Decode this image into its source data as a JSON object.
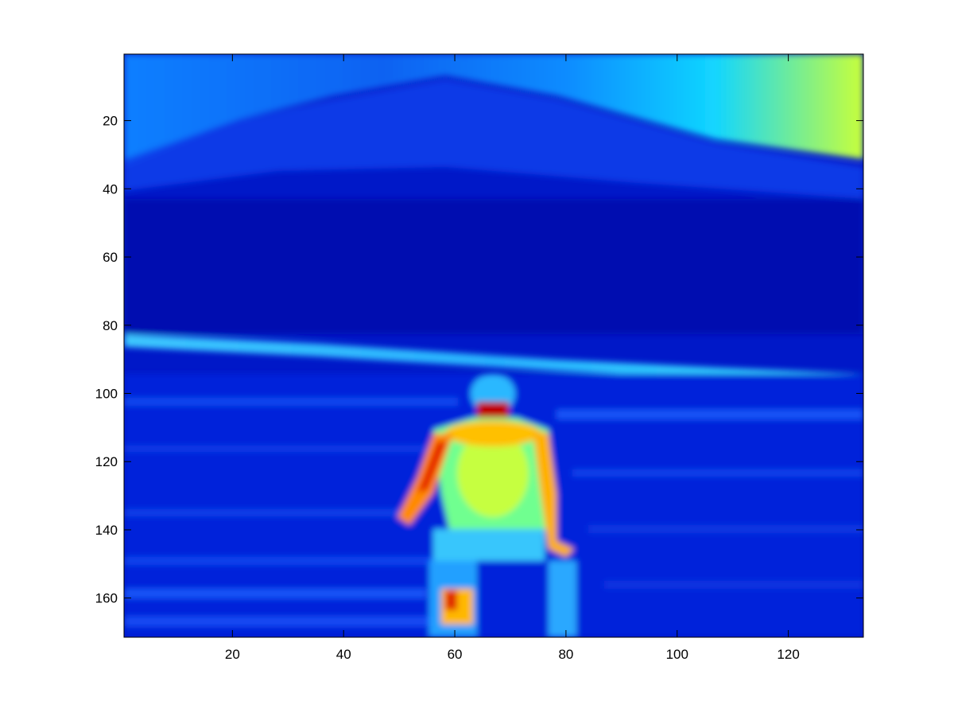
{
  "chart_data": {
    "type": "heatmap",
    "title": "",
    "xlabel": "",
    "ylabel": "",
    "xlim": [
      0.5,
      133.5
    ],
    "ylim": [
      0.5,
      171.5
    ],
    "y_reversed": true,
    "grid": false,
    "colormap": "jet",
    "image_size": {
      "columns": 133,
      "rows": 171
    },
    "x_ticks": [
      20,
      40,
      60,
      80,
      100,
      120
    ],
    "x_tick_labels": [
      "20",
      "40",
      "60",
      "80",
      "100",
      "120"
    ],
    "y_ticks": [
      20,
      40,
      60,
      80,
      100,
      120,
      140,
      160
    ],
    "y_tick_labels": [
      "20",
      "40",
      "60",
      "80",
      "100",
      "120",
      "140",
      "160"
    ]
  },
  "colors": {
    "frame": "#000000",
    "background": "#ffffff"
  }
}
